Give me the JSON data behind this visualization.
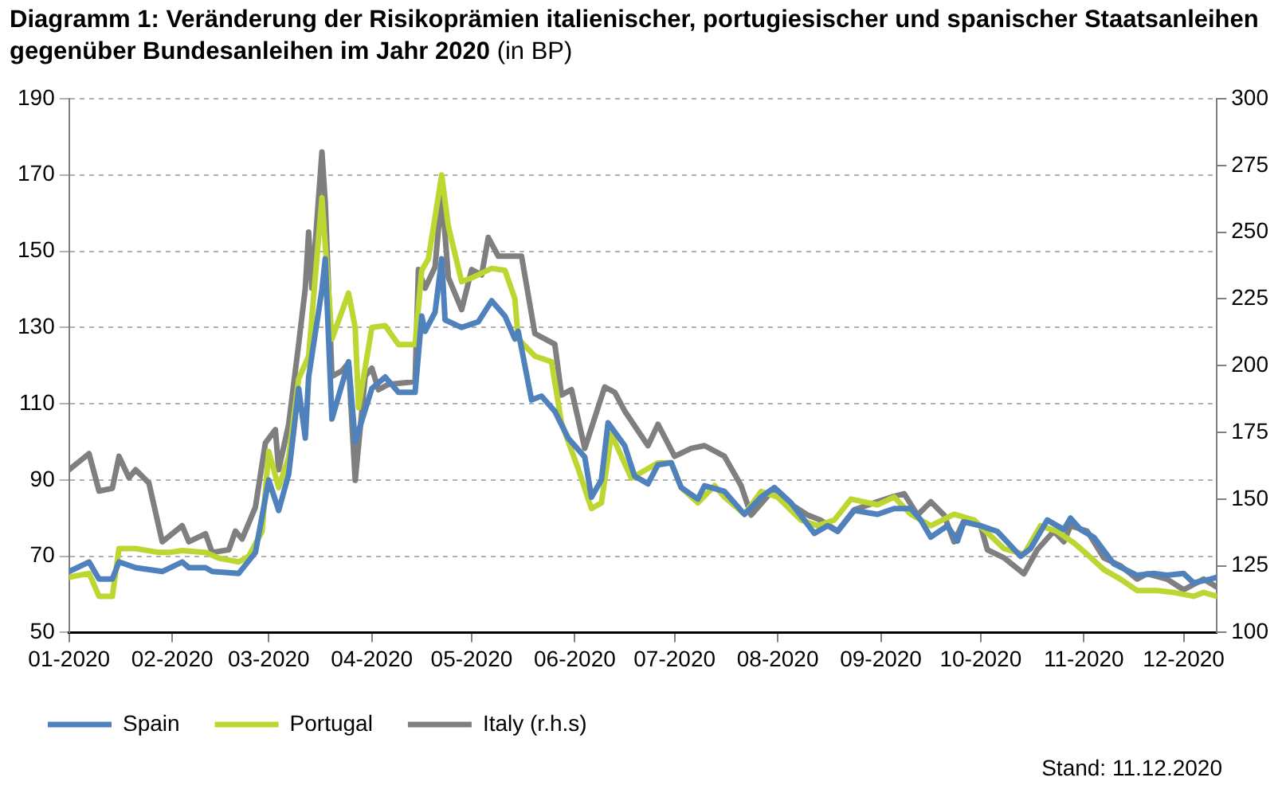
{
  "chart_data": {
    "type": "line",
    "title": "Diagramm 1: Veränderung der Risikoprämien italienischer, portugiesischer und spanischer Staatsanleihen gegenüber Bundesanleihen im Jahr 2020",
    "subtitle": "(in BP)",
    "annotations": [
      "Stand: 11.12.2020"
    ],
    "xlim": [
      "2020-01-01",
      "2020-12-11"
    ],
    "xticks": [
      {
        "value": "2020-01-01",
        "label": "01-2020"
      },
      {
        "value": "2020-02-01",
        "label": "02-2020"
      },
      {
        "value": "2020-03-01",
        "label": "03-2020"
      },
      {
        "value": "2020-04-01",
        "label": "04-2020"
      },
      {
        "value": "2020-05-01",
        "label": "05-2020"
      },
      {
        "value": "2020-06-01",
        "label": "06-2020"
      },
      {
        "value": "2020-07-01",
        "label": "07-2020"
      },
      {
        "value": "2020-08-01",
        "label": "08-2020"
      },
      {
        "value": "2020-09-01",
        "label": "09-2020"
      },
      {
        "value": "2020-10-01",
        "label": "10-2020"
      },
      {
        "value": "2020-11-01",
        "label": "11-2020"
      },
      {
        "value": "2020-12-01",
        "label": "12-2020"
      }
    ],
    "ylim": [
      50,
      190
    ],
    "yticks": [
      50,
      70,
      90,
      110,
      130,
      150,
      170,
      190
    ],
    "y2lim": [
      100,
      300
    ],
    "y2ticks": [
      100,
      125,
      150,
      175,
      200,
      225,
      250,
      275,
      300
    ],
    "grid": "y",
    "legend": "bottom left",
    "marker": "none",
    "line_style": "solid",
    "series": [
      {
        "name": "Spain",
        "color": "#4f81bd",
        "x": [
          "2020-01-01",
          "2020-01-07",
          "2020-01-10",
          "2020-01-14",
          "2020-01-16",
          "2020-01-21",
          "2020-01-29",
          "2020-02-04",
          "2020-02-06",
          "2020-02-11",
          "2020-02-13",
          "2020-02-21",
          "2020-02-26",
          "2020-03-01",
          "2020-03-04",
          "2020-03-07",
          "2020-03-10",
          "2020-03-12",
          "2020-03-13",
          "2020-03-17",
          "2020-03-18",
          "2020-03-20",
          "2020-03-25",
          "2020-03-27",
          "2020-04-01",
          "2020-04-05",
          "2020-04-09",
          "2020-04-14",
          "2020-04-16",
          "2020-04-17",
          "2020-04-20",
          "2020-04-22",
          "2020-04-23",
          "2020-04-28",
          "2020-05-03",
          "2020-05-07",
          "2020-05-11",
          "2020-05-14",
          "2020-05-15",
          "2020-05-19",
          "2020-05-22",
          "2020-05-26",
          "2020-05-30",
          "2020-06-04",
          "2020-06-06",
          "2020-06-09",
          "2020-06-11",
          "2020-06-16",
          "2020-06-19",
          "2020-06-23",
          "2020-06-26",
          "2020-06-30",
          "2020-07-03",
          "2020-07-08",
          "2020-07-10",
          "2020-07-16",
          "2020-07-22",
          "2020-07-27",
          "2020-07-31",
          "2020-08-05",
          "2020-08-12",
          "2020-08-16",
          "2020-08-19",
          "2020-08-24",
          "2020-08-31",
          "2020-09-05",
          "2020-09-10",
          "2020-09-13",
          "2020-09-16",
          "2020-09-21",
          "2020-09-24",
          "2020-09-26",
          "2020-10-01",
          "2020-10-06",
          "2020-10-13",
          "2020-10-16",
          "2020-10-21",
          "2020-10-26",
          "2020-10-28",
          "2020-10-31",
          "2020-11-04",
          "2020-11-10",
          "2020-11-17",
          "2020-11-22",
          "2020-11-26",
          "2020-12-01",
          "2020-12-04",
          "2020-12-09",
          "2020-12-11"
        ],
        "values": [
          66,
          68.5,
          64,
          64,
          68.5,
          67,
          66,
          68.5,
          67,
          67,
          66,
          65.5,
          71,
          90,
          82,
          91.5,
          114,
          101,
          117,
          140,
          148,
          106,
          121,
          100,
          114,
          117,
          113,
          113,
          133,
          129,
          134,
          148,
          132,
          130,
          131.5,
          137,
          133,
          127,
          129,
          111,
          112,
          108,
          101,
          96,
          85.5,
          90,
          105,
          99,
          91,
          89,
          94,
          94.5,
          88,
          85,
          88.5,
          87,
          81,
          85.5,
          88,
          84,
          76,
          78,
          76.5,
          82,
          81,
          82.5,
          82.5,
          79.5,
          75,
          78,
          74,
          79,
          78,
          76.5,
          70,
          72,
          79.5,
          77,
          80,
          77,
          75,
          68,
          65,
          65.5,
          65,
          65.5,
          63,
          64,
          64.5
        ]
      },
      {
        "name": "Portugal",
        "color": "#bdd631",
        "x": [
          "2020-01-01",
          "2020-01-07",
          "2020-01-10",
          "2020-01-14",
          "2020-01-16",
          "2020-01-21",
          "2020-01-28",
          "2020-01-31",
          "2020-02-04",
          "2020-02-11",
          "2020-02-15",
          "2020-02-21",
          "2020-02-24",
          "2020-02-28",
          "2020-03-01",
          "2020-03-04",
          "2020-03-07",
          "2020-03-10",
          "2020-03-13",
          "2020-03-17",
          "2020-03-20",
          "2020-03-25",
          "2020-03-27",
          "2020-03-28",
          "2020-04-01",
          "2020-04-05",
          "2020-04-09",
          "2020-04-14",
          "2020-04-16",
          "2020-04-18",
          "2020-04-22",
          "2020-04-24",
          "2020-04-28",
          "2020-05-01",
          "2020-05-07",
          "2020-05-11",
          "2020-05-14",
          "2020-05-15",
          "2020-05-20",
          "2020-05-25",
          "2020-05-28",
          "2020-06-02",
          "2020-06-06",
          "2020-06-09",
          "2020-06-12",
          "2020-06-18",
          "2020-06-23",
          "2020-06-26",
          "2020-06-30",
          "2020-07-03",
          "2020-07-08",
          "2020-07-13",
          "2020-07-16",
          "2020-07-22",
          "2020-07-27",
          "2020-08-01",
          "2020-08-08",
          "2020-08-13",
          "2020-08-18",
          "2020-08-23",
          "2020-08-31",
          "2020-09-05",
          "2020-09-10",
          "2020-09-16",
          "2020-09-23",
          "2020-09-29",
          "2020-10-08",
          "2020-10-14",
          "2020-10-19",
          "2020-10-24",
          "2020-10-29",
          "2020-11-02",
          "2020-11-07",
          "2020-11-12",
          "2020-11-17",
          "2020-11-23",
          "2020-11-28",
          "2020-12-04",
          "2020-12-07",
          "2020-12-11"
        ],
        "values": [
          64.5,
          65.5,
          59.5,
          59.5,
          72,
          72,
          71,
          71,
          71.5,
          71,
          69.5,
          68.5,
          70,
          76.5,
          97.5,
          88,
          96,
          116.5,
          122.5,
          164,
          127,
          139,
          130,
          109,
          130,
          130.5,
          125.5,
          125.5,
          145,
          148,
          170,
          156.5,
          142,
          143,
          145.5,
          145,
          137.5,
          127,
          122.5,
          121,
          105,
          93,
          82.5,
          84,
          102,
          90.5,
          93,
          94.5,
          94.5,
          88,
          84,
          88.5,
          85.5,
          81,
          87,
          85.5,
          79.5,
          78,
          79.5,
          85,
          83.5,
          85.5,
          81,
          78,
          81,
          79.5,
          72,
          70.5,
          78,
          76.5,
          73.5,
          70.5,
          66.5,
          64,
          61,
          61,
          60.5,
          59.5,
          60.5,
          59.5
        ]
      },
      {
        "name": "Italy (r.h.s)",
        "color": "#7f7f7f",
        "axis": "y2",
        "x": [
          "2020-01-01",
          "2020-01-04",
          "2020-01-07",
          "2020-01-10",
          "2020-01-14",
          "2020-01-16",
          "2020-01-19",
          "2020-01-21",
          "2020-01-25",
          "2020-01-29",
          "2020-02-04",
          "2020-02-06",
          "2020-02-11",
          "2020-02-13",
          "2020-02-18",
          "2020-02-20",
          "2020-02-22",
          "2020-02-26",
          "2020-02-29",
          "2020-03-03",
          "2020-03-04",
          "2020-03-07",
          "2020-03-10",
          "2020-03-12",
          "2020-03-13",
          "2020-03-14",
          "2020-03-17",
          "2020-03-18",
          "2020-03-20",
          "2020-03-23",
          "2020-03-25",
          "2020-03-27",
          "2020-03-30",
          "2020-04-01",
          "2020-04-03",
          "2020-04-06",
          "2020-04-14",
          "2020-04-15",
          "2020-04-17",
          "2020-04-20",
          "2020-04-22",
          "2020-04-24",
          "2020-04-28",
          "2020-05-01",
          "2020-05-04",
          "2020-05-06",
          "2020-05-09",
          "2020-05-13",
          "2020-05-16",
          "2020-05-20",
          "2020-05-26",
          "2020-05-28",
          "2020-05-31",
          "2020-06-04",
          "2020-06-10",
          "2020-06-13",
          "2020-06-16",
          "2020-06-23",
          "2020-06-26",
          "2020-07-01",
          "2020-07-06",
          "2020-07-10",
          "2020-07-16",
          "2020-07-21",
          "2020-07-24",
          "2020-07-31",
          "2020-08-05",
          "2020-08-10",
          "2020-08-14",
          "2020-08-19",
          "2020-08-24",
          "2020-08-31",
          "2020-09-05",
          "2020-09-08",
          "2020-09-12",
          "2020-09-16",
          "2020-09-20",
          "2020-09-23",
          "2020-09-26",
          "2020-10-01",
          "2020-10-03",
          "2020-10-08",
          "2020-10-14",
          "2020-10-18",
          "2020-10-23",
          "2020-10-26",
          "2020-10-28",
          "2020-11-02",
          "2020-11-07",
          "2020-11-12",
          "2020-11-17",
          "2020-11-20",
          "2020-11-26",
          "2020-12-01",
          "2020-12-07",
          "2020-12-11"
        ],
        "values": [
          161,
          164,
          167,
          153,
          154,
          166,
          158,
          161,
          156,
          134,
          140,
          134,
          137,
          130,
          131,
          138,
          135,
          147,
          171,
          176,
          161,
          178,
          208,
          229,
          250,
          229,
          280,
          261,
          196,
          198,
          201,
          157,
          196,
          199,
          191,
          193,
          194,
          236,
          229,
          237,
          265,
          233,
          221,
          236,
          234,
          248,
          241,
          241,
          241,
          212,
          208,
          189,
          191,
          169,
          192,
          190,
          183,
          170,
          178,
          166,
          169,
          170,
          166,
          155,
          144,
          154,
          148,
          144,
          142,
          138,
          146,
          149,
          151,
          152,
          144,
          149,
          144,
          134,
          142,
          140,
          131,
          128,
          122,
          131,
          138,
          134,
          140,
          138,
          128,
          125,
          120,
          122,
          120,
          116,
          120,
          117
        ]
      }
    ]
  }
}
